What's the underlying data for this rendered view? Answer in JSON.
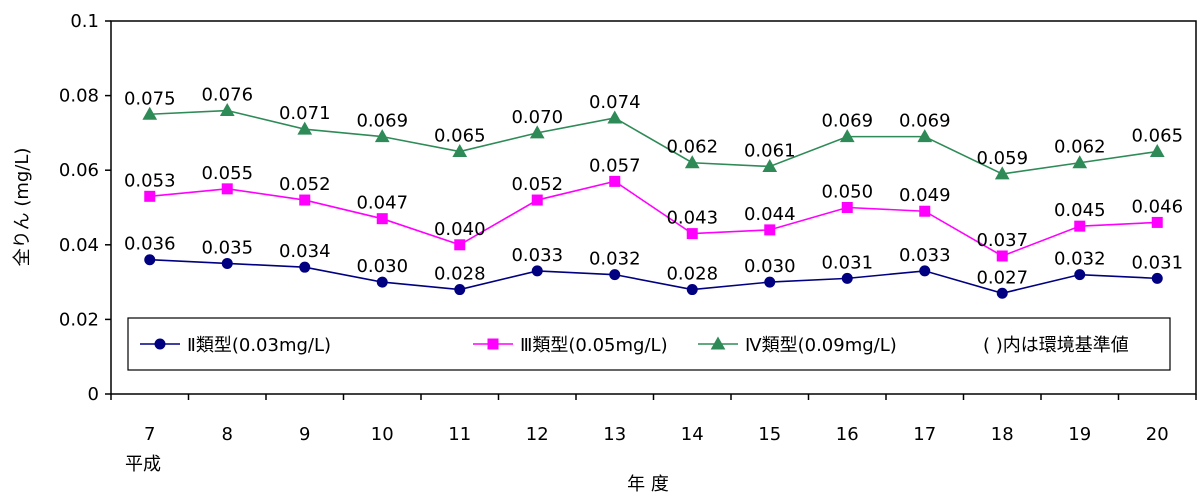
{
  "chart_data": {
    "type": "line",
    "categories": [
      "7",
      "8",
      "9",
      "10",
      "11",
      "12",
      "13",
      "14",
      "15",
      "16",
      "17",
      "18",
      "19",
      "20"
    ],
    "category_prefix": "平成",
    "xlabel": "年 度",
    "ylabel": "全りん (mg/L)",
    "ylim": [
      0,
      0.1
    ],
    "yticks": [
      "0",
      "0.02",
      "0.04",
      "0.06",
      "0.08",
      "0.1"
    ],
    "ytick_values": [
      0,
      0.02,
      0.04,
      0.06,
      0.08,
      0.1
    ],
    "grid": false,
    "legend_position": "bottom-inside",
    "legend_note": "( )内は環境基準値",
    "series": [
      {
        "name": "Ⅱ類型(0.03mg/L)",
        "marker": "circle",
        "color": "#000080",
        "values": [
          0.036,
          0.035,
          0.034,
          0.03,
          0.028,
          0.033,
          0.032,
          0.028,
          0.03,
          0.031,
          0.033,
          0.027,
          0.032,
          0.031
        ],
        "labels": [
          "0.036",
          "0.035",
          "0.034",
          "0.030",
          "0.028",
          "0.033",
          "0.032",
          "0.028",
          "0.030",
          "0.031",
          "0.033",
          "0.027",
          "0.032",
          "0.031"
        ]
      },
      {
        "name": "Ⅲ類型(0.05mg/L)",
        "marker": "square",
        "color": "#ff00ff",
        "values": [
          0.053,
          0.055,
          0.052,
          0.047,
          0.04,
          0.052,
          0.057,
          0.043,
          0.044,
          0.05,
          0.049,
          0.037,
          0.045,
          0.046
        ],
        "labels": [
          "0.053",
          "0.055",
          "0.052",
          "0.047",
          "0.040",
          "0.052",
          "0.057",
          "0.043",
          "0.044",
          "0.050",
          "0.049",
          "0.037",
          "0.045",
          "0.046"
        ]
      },
      {
        "name": "Ⅳ類型(0.09mg/L)",
        "marker": "triangle",
        "color": "#2e8b57",
        "values": [
          0.075,
          0.076,
          0.071,
          0.069,
          0.065,
          0.07,
          0.074,
          0.062,
          0.061,
          0.069,
          0.069,
          0.059,
          0.062,
          0.065
        ],
        "labels": [
          "0.075",
          "0.076",
          "0.071",
          "0.069",
          "0.065",
          "0.070",
          "0.074",
          "0.062",
          "0.061",
          "0.069",
          "0.069",
          "0.059",
          "0.062",
          "0.065"
        ]
      }
    ]
  }
}
